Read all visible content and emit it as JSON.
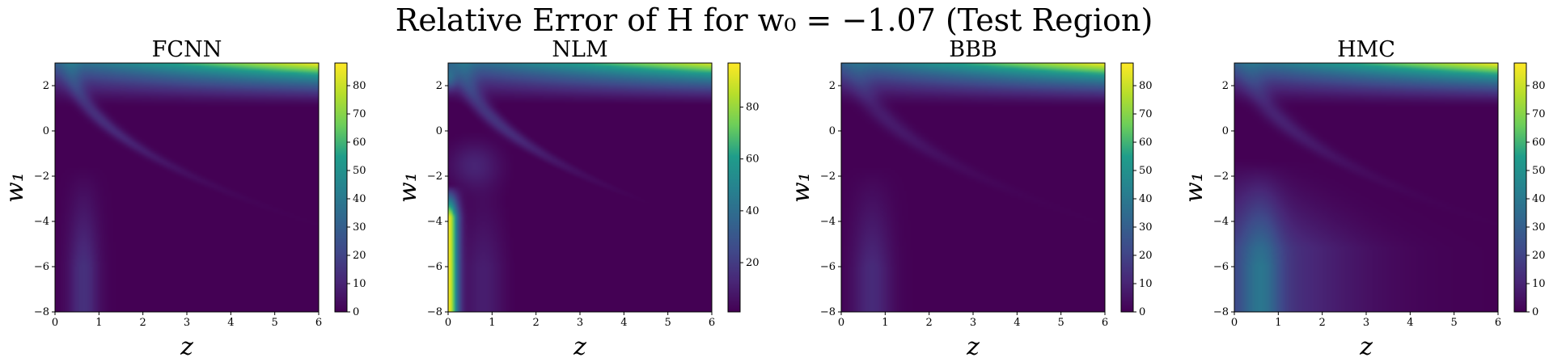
{
  "figure": {
    "title": "Relative Error of H for w₀ = −1.07 (Test Region)"
  },
  "colormap": {
    "name": "viridis",
    "stops": [
      "#440154",
      "#482777",
      "#3f4a8a",
      "#31678e",
      "#26838f",
      "#1f9d8a",
      "#6cce5a",
      "#b6de2b",
      "#fee825"
    ]
  },
  "chart_data": [
    {
      "type": "heatmap",
      "title": "FCNN",
      "xlabel": "z",
      "ylabel": "w₁",
      "xlim": [
        0,
        6
      ],
      "ylim": [
        -8,
        3
      ],
      "xticks": [
        "0",
        "1",
        "2",
        "3",
        "4",
        "5",
        "6"
      ],
      "yticks": [
        "2",
        "0",
        "−2",
        "−4",
        "−6",
        "−8"
      ],
      "colorbar": {
        "range": [
          0,
          88
        ],
        "ticks": [
          "0",
          "10",
          "20",
          "30",
          "40",
          "50",
          "60",
          "70",
          "80"
        ]
      },
      "features": {
        "top_max": 88,
        "curve_strength": 14,
        "curve_width": 0.22,
        "left_band": 14,
        "left_band_center": 0.65,
        "left_band_width": 0.35,
        "wedge": 0,
        "nlm_spike": false
      }
    },
    {
      "type": "heatmap",
      "title": "NLM",
      "xlabel": "z",
      "ylabel": "w₁",
      "xlim": [
        0,
        6
      ],
      "ylim": [
        -8,
        3
      ],
      "xticks": [
        "0",
        "1",
        "2",
        "3",
        "4",
        "5",
        "6"
      ],
      "yticks": [
        "2",
        "0",
        "−2",
        "−4",
        "−6",
        "−8"
      ],
      "colorbar": {
        "range": [
          1,
          97
        ],
        "ticks": [
          "20",
          "40",
          "60",
          "80"
        ]
      },
      "features": {
        "top_max": 92,
        "curve_strength": 18,
        "curve_width": 0.25,
        "left_band": 10,
        "left_band_center": 0.8,
        "left_band_width": 0.5,
        "wedge": 0,
        "nlm_spike": true
      }
    },
    {
      "type": "heatmap",
      "title": "BBB",
      "xlabel": "z",
      "ylabel": "w₁",
      "xlim": [
        0,
        6
      ],
      "ylim": [
        -8,
        3
      ],
      "xticks": [
        "0",
        "1",
        "2",
        "3",
        "4",
        "5",
        "6"
      ],
      "yticks": [
        "2",
        "0",
        "−2",
        "−4",
        "−6",
        "−8"
      ],
      "colorbar": {
        "range": [
          0,
          88
        ],
        "ticks": [
          "0",
          "10",
          "20",
          "30",
          "40",
          "50",
          "60",
          "70",
          "80"
        ]
      },
      "features": {
        "top_max": 88,
        "curve_strength": 8,
        "curve_width": 0.3,
        "left_band": 12,
        "left_band_center": 0.7,
        "left_band_width": 0.45,
        "wedge": 0,
        "nlm_spike": false
      }
    },
    {
      "type": "heatmap",
      "title": "HMC",
      "xlabel": "z",
      "ylabel": "w₁",
      "xlim": [
        0,
        6
      ],
      "ylim": [
        -8,
        3
      ],
      "xticks": [
        "0",
        "1",
        "2",
        "3",
        "4",
        "5",
        "6"
      ],
      "yticks": [
        "2",
        "0",
        "−2",
        "−4",
        "−6",
        "−8"
      ],
      "colorbar": {
        "range": [
          0,
          88
        ],
        "ticks": [
          "0",
          "10",
          "20",
          "30",
          "40",
          "50",
          "60",
          "70",
          "80"
        ]
      },
      "features": {
        "top_max": 88,
        "curve_strength": 10,
        "curve_width": 0.3,
        "left_band": 22,
        "left_band_center": 0.6,
        "left_band_width": 0.45,
        "wedge": 20,
        "nlm_spike": false
      }
    }
  ]
}
